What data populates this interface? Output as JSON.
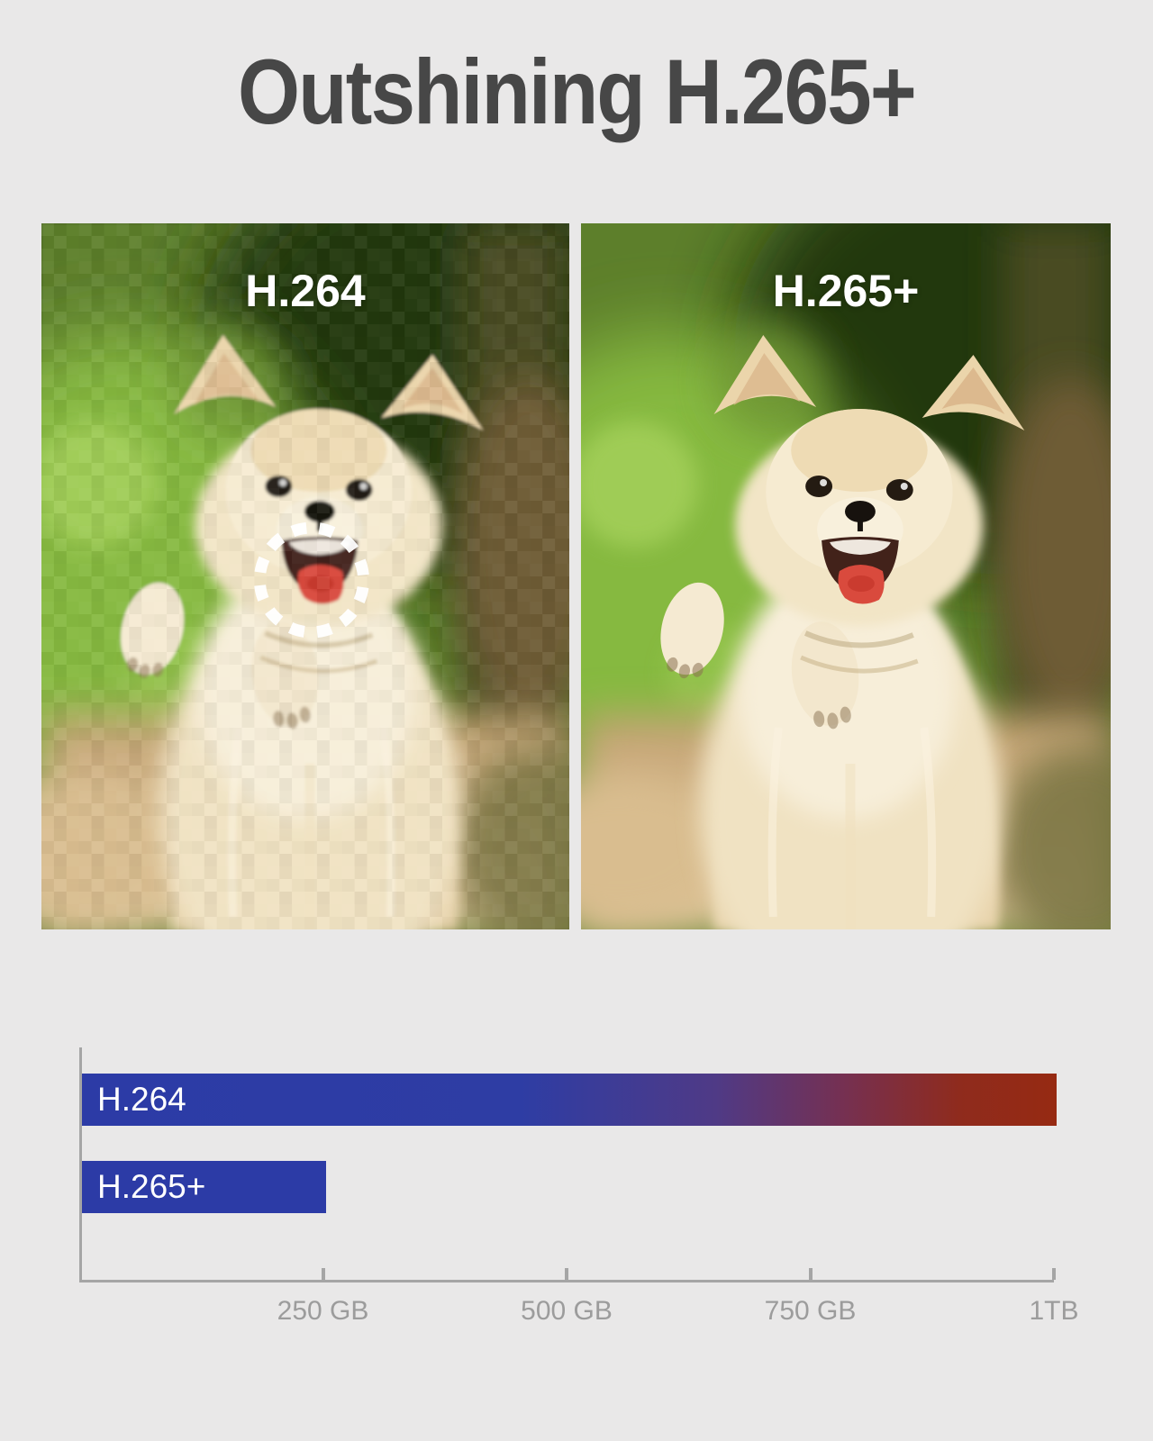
{
  "title": "Outshining H.265+",
  "comparison": {
    "left_label": "H.264",
    "right_label": "H.265+",
    "left_style": "pixelated-compressed",
    "right_style": "clear",
    "artifact_highlight": "dashed-circle-around-mouth"
  },
  "chart_data": {
    "type": "bar",
    "orientation": "horizontal",
    "categories": [
      "H.264",
      "H.265+"
    ],
    "values_gb": [
      1000,
      250
    ],
    "unit": "GB",
    "xlim_gb": [
      0,
      1000
    ],
    "ticks": [
      {
        "value_gb": 250,
        "label": "250 GB"
      },
      {
        "value_gb": 500,
        "label": "500 GB"
      },
      {
        "value_gb": 750,
        "label": "750 GB"
      },
      {
        "value_gb": 1000,
        "label": "1TB"
      }
    ],
    "legend_position": "labels-inside-bars",
    "grid": false
  },
  "colors": {
    "page_background": "#e9e8e8",
    "title_text": "#474747",
    "bar_blue": "#2c3ba6",
    "bar_gradient_end_red": "#962a12",
    "axis_gray": "#a5a5a5",
    "tick_label_gray": "#9c9c9c",
    "image_label_white": "#ffffff"
  }
}
